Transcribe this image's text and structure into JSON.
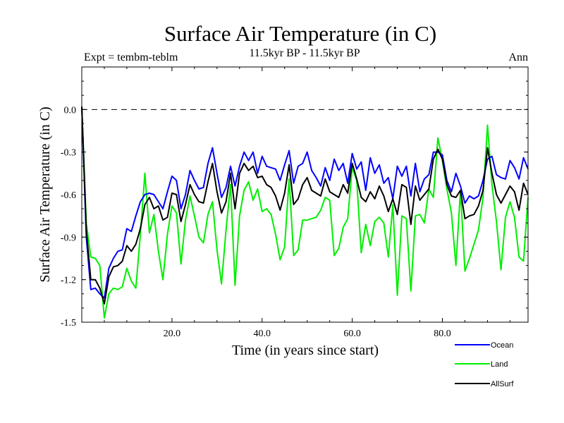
{
  "chart_data": {
    "type": "line",
    "title": "Surface Air Temperature (in C)",
    "subtitle": "11.5kyr BP - 11.5kyr BP",
    "left_label": "Expt = tembm-teblm",
    "right_label": "Ann",
    "xlabel": "Time (in years since start)",
    "ylabel": "Surface Air Temperature (in C)",
    "xlim": [
      0,
      99
    ],
    "ylim": [
      -1.5,
      0.3
    ],
    "x_ticks": [
      20,
      40,
      60,
      80
    ],
    "x_tick_labels": [
      "20.0",
      "40.0",
      "60.0",
      "80.0"
    ],
    "y_ticks": [
      -1.5,
      -1.2,
      -0.9,
      -0.6,
      -0.3,
      0.0
    ],
    "y_tick_labels": [
      "-1.5",
      "-1.2",
      "-0.9",
      "-0.6",
      "-0.3",
      "0.0"
    ],
    "reference_line": 0.0,
    "x": [
      0,
      1,
      2,
      3,
      4,
      5,
      6,
      7,
      8,
      9,
      10,
      11,
      12,
      13,
      14,
      15,
      16,
      17,
      18,
      19,
      20,
      21,
      22,
      23,
      24,
      25,
      26,
      27,
      28,
      29,
      30,
      31,
      32,
      33,
      34,
      35,
      36,
      37,
      38,
      39,
      40,
      41,
      42,
      43,
      44,
      45,
      46,
      47,
      48,
      49,
      50,
      51,
      52,
      53,
      54,
      55,
      56,
      57,
      58,
      59,
      60,
      61,
      62,
      63,
      64,
      65,
      66,
      67,
      68,
      69,
      70,
      71,
      72,
      73,
      74,
      75,
      76,
      77,
      78,
      79,
      80,
      81,
      82,
      83,
      84,
      85,
      86,
      87,
      88,
      89,
      90,
      91,
      92,
      93,
      94,
      95,
      96,
      97,
      98,
      99
    ],
    "series": [
      {
        "name": "Ocean",
        "color": "#0000ff",
        "values": [
          0.02,
          -0.9,
          -1.27,
          -1.26,
          -1.3,
          -1.33,
          -1.12,
          -1.05,
          -1.0,
          -0.99,
          -0.84,
          -0.86,
          -0.75,
          -0.65,
          -0.6,
          -0.59,
          -0.6,
          -0.65,
          -0.7,
          -0.58,
          -0.47,
          -0.5,
          -0.7,
          -0.6,
          -0.43,
          -0.5,
          -0.56,
          -0.55,
          -0.38,
          -0.27,
          -0.45,
          -0.62,
          -0.55,
          -0.4,
          -0.54,
          -0.4,
          -0.3,
          -0.36,
          -0.3,
          -0.45,
          -0.33,
          -0.4,
          -0.41,
          -0.42,
          -0.5,
          -0.39,
          -0.29,
          -0.52,
          -0.4,
          -0.38,
          -0.3,
          -0.43,
          -0.48,
          -0.54,
          -0.41,
          -0.5,
          -0.35,
          -0.43,
          -0.38,
          -0.52,
          -0.31,
          -0.42,
          -0.37,
          -0.57,
          -0.34,
          -0.45,
          -0.39,
          -0.52,
          -0.48,
          -0.63,
          -0.4,
          -0.47,
          -0.4,
          -0.61,
          -0.38,
          -0.58,
          -0.49,
          -0.46,
          -0.3,
          -0.3,
          -0.32,
          -0.5,
          -0.58,
          -0.45,
          -0.54,
          -0.66,
          -0.61,
          -0.63,
          -0.61,
          -0.5,
          -0.35,
          -0.33,
          -0.46,
          -0.48,
          -0.49,
          -0.36,
          -0.41,
          -0.49,
          -0.34,
          -0.42
        ]
      },
      {
        "name": "Land",
        "color": "#00ee00",
        "values": [
          0.02,
          -0.8,
          -1.04,
          -1.05,
          -1.1,
          -1.47,
          -1.3,
          -1.26,
          -1.27,
          -1.25,
          -1.12,
          -1.21,
          -1.26,
          -0.88,
          -0.45,
          -0.87,
          -0.74,
          -1.0,
          -1.2,
          -0.88,
          -0.68,
          -0.73,
          -1.09,
          -0.78,
          -0.61,
          -0.75,
          -0.9,
          -0.94,
          -0.74,
          -0.65,
          -0.99,
          -1.23,
          -0.85,
          -0.53,
          -1.24,
          -0.75,
          -0.57,
          -0.51,
          -0.64,
          -0.56,
          -0.72,
          -0.7,
          -0.74,
          -0.88,
          -1.06,
          -0.97,
          -0.49,
          -1.03,
          -0.99,
          -0.78,
          -0.78,
          -0.77,
          -0.76,
          -0.71,
          -0.62,
          -0.64,
          -1.03,
          -0.98,
          -0.83,
          -0.77,
          -0.41,
          -0.5,
          -1.01,
          -0.81,
          -0.96,
          -0.79,
          -0.76,
          -0.8,
          -1.04,
          -0.67,
          -1.31,
          -0.75,
          -0.77,
          -1.28,
          -0.75,
          -0.74,
          -0.8,
          -0.56,
          -0.62,
          -0.2,
          -0.36,
          -0.56,
          -0.73,
          -1.1,
          -0.57,
          -1.14,
          -1.05,
          -0.95,
          -0.85,
          -0.62,
          -0.11,
          -0.53,
          -0.79,
          -1.13,
          -0.76,
          -0.65,
          -0.76,
          -1.04,
          -1.07,
          -0.62
        ]
      },
      {
        "name": "AllSurf",
        "color": "#000000",
        "values": [
          0.02,
          -0.85,
          -1.2,
          -1.2,
          -1.26,
          -1.37,
          -1.18,
          -1.11,
          -1.1,
          -1.07,
          -0.96,
          -1.0,
          -0.95,
          -0.84,
          -0.67,
          -0.62,
          -0.7,
          -0.68,
          -0.78,
          -0.76,
          -0.59,
          -0.6,
          -0.79,
          -0.67,
          -0.53,
          -0.6,
          -0.65,
          -0.66,
          -0.51,
          -0.38,
          -0.58,
          -0.73,
          -0.65,
          -0.45,
          -0.7,
          -0.45,
          -0.38,
          -0.43,
          -0.4,
          -0.48,
          -0.47,
          -0.53,
          -0.55,
          -0.61,
          -0.71,
          -0.59,
          -0.39,
          -0.67,
          -0.63,
          -0.53,
          -0.48,
          -0.57,
          -0.59,
          -0.61,
          -0.49,
          -0.58,
          -0.6,
          -0.62,
          -0.53,
          -0.59,
          -0.38,
          -0.49,
          -0.62,
          -0.65,
          -0.58,
          -0.63,
          -0.54,
          -0.61,
          -0.72,
          -0.63,
          -0.74,
          -0.53,
          -0.55,
          -0.81,
          -0.54,
          -0.64,
          -0.6,
          -0.56,
          -0.35,
          -0.28,
          -0.35,
          -0.53,
          -0.61,
          -0.62,
          -0.57,
          -0.77,
          -0.75,
          -0.74,
          -0.68,
          -0.57,
          -0.27,
          -0.45,
          -0.6,
          -0.66,
          -0.6,
          -0.54,
          -0.58,
          -0.71,
          -0.52,
          -0.6
        ]
      }
    ],
    "legend": [
      {
        "label": "Ocean",
        "color": "#0000ff"
      },
      {
        "label": "Land",
        "color": "#00ee00"
      },
      {
        "label": "AllSurf",
        "color": "#000000"
      }
    ],
    "legend_position": "bottom-right"
  }
}
